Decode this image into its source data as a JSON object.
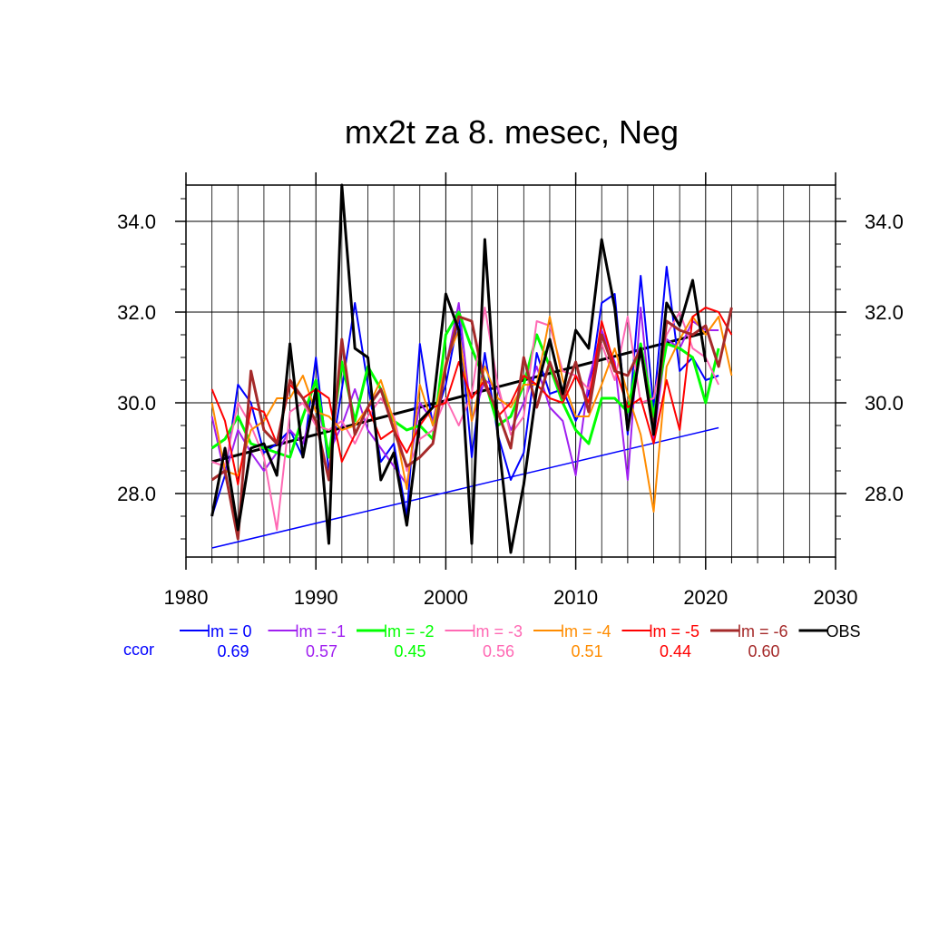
{
  "chart_data": {
    "type": "line",
    "title": "mx2t za 8. mesec, Neg",
    "xlim": [
      1980,
      2030
    ],
    "ylim": [
      26.6,
      34.8
    ],
    "x_ticks": [
      "1980",
      "1990",
      "2000",
      "2010",
      "2020",
      "2030"
    ],
    "y_ticks": [
      "28.0",
      "30.0",
      "32.0",
      "34.0"
    ],
    "grid": true,
    "legend_position": "bottom",
    "ccor_label": "ccor",
    "x": [
      1982,
      1983,
      1984,
      1985,
      1986,
      1987,
      1988,
      1989,
      1990,
      1991,
      1992,
      1993,
      1994,
      1995,
      1996,
      1997,
      1998,
      1999,
      2000,
      2001,
      2002,
      2003,
      2004,
      2005,
      2006,
      2007,
      2008,
      2009,
      2010,
      2011,
      2012,
      2013,
      2014,
      2015,
      2016,
      2017,
      2018,
      2019,
      2020,
      2021,
      2022
    ],
    "series": [
      {
        "name": "lm = 0",
        "ccor": "0.69",
        "color": "#0000ff",
        "width": 2,
        "values": [
          27.5,
          28.4,
          30.4,
          30.0,
          28.9,
          29.1,
          29.4,
          28.8,
          31.0,
          28.5,
          30.3,
          32.2,
          30.4,
          28.7,
          29.1,
          27.5,
          31.3,
          29.5,
          30.4,
          31.9,
          28.8,
          31.1,
          29.3,
          28.3,
          28.9,
          31.1,
          30.2,
          30.3,
          29.6,
          30.2,
          32.2,
          32.4,
          29.3,
          32.8,
          29.9,
          33.0,
          30.7,
          31.0,
          30.5,
          30.6,
          null
        ]
      },
      {
        "name": "lm = -1",
        "ccor": "0.57",
        "color": "#a020f0",
        "width": 2,
        "values": [
          29.7,
          28.4,
          29.4,
          28.9,
          28.5,
          28.9,
          29.4,
          29.1,
          30.1,
          28.9,
          29.5,
          30.3,
          29.4,
          29.0,
          28.6,
          28.2,
          30.0,
          29.6,
          30.8,
          32.2,
          29.6,
          30.5,
          30.3,
          29.4,
          30.0,
          30.8,
          29.9,
          29.6,
          28.4,
          30.5,
          31.6,
          30.9,
          28.3,
          32.1,
          29.2,
          31.4,
          31.2,
          31.8,
          31.6,
          31.6,
          null
        ]
      },
      {
        "name": "lm = -2",
        "ccor": "0.45",
        "color": "#00ff00",
        "width": 3,
        "values": [
          29.0,
          29.2,
          29.7,
          29.1,
          29.0,
          28.9,
          28.8,
          29.7,
          30.5,
          28.8,
          30.9,
          29.6,
          30.8,
          30.3,
          29.6,
          29.4,
          29.5,
          29.2,
          31.5,
          32.0,
          31.2,
          30.5,
          29.5,
          29.7,
          30.4,
          31.5,
          30.8,
          30.0,
          29.4,
          29.1,
          30.1,
          30.1,
          29.8,
          31.3,
          29.7,
          31.3,
          31.2,
          31.0,
          30.0,
          31.2,
          null
        ]
      },
      {
        "name": "lm = -3",
        "ccor": "0.56",
        "color": "#ff69b4",
        "width": 2,
        "values": [
          28.7,
          28.6,
          30.0,
          29.5,
          28.8,
          27.2,
          29.8,
          30.0,
          29.5,
          29.4,
          29.6,
          29.1,
          29.7,
          30.1,
          29.7,
          28.5,
          29.2,
          29.4,
          30.1,
          29.5,
          30.2,
          32.1,
          30.4,
          29.3,
          29.7,
          31.8,
          31.7,
          30.7,
          30.6,
          30.3,
          31.3,
          30.5,
          31.9,
          30.0,
          30.1,
          31.5,
          32.0,
          31.2,
          31.0,
          30.4,
          null
        ]
      },
      {
        "name": "lm = -4",
        "ccor": "0.51",
        "color": "#ff8c00",
        "width": 2,
        "values": [
          30.0,
          28.5,
          28.4,
          29.4,
          29.6,
          30.1,
          30.1,
          30.6,
          29.8,
          29.7,
          29.4,
          29.5,
          29.9,
          30.5,
          29.6,
          28.1,
          30.4,
          29.5,
          30.9,
          31.6,
          29.6,
          30.8,
          30.1,
          29.9,
          30.4,
          30.4,
          31.9,
          30.5,
          29.7,
          29.7,
          30.4,
          31.2,
          30.2,
          29.3,
          27.6,
          30.8,
          31.4,
          31.9,
          31.5,
          31.9,
          30.6
        ]
      },
      {
        "name": "lm = -5",
        "ccor": "0.44",
        "color": "#ff0000",
        "width": 2,
        "values": [
          30.3,
          29.6,
          28.2,
          29.9,
          29.8,
          29.1,
          30.4,
          30.1,
          30.3,
          30.1,
          28.7,
          29.3,
          29.9,
          29.2,
          29.4,
          28.9,
          29.5,
          29.9,
          30.0,
          30.9,
          30.1,
          30.5,
          29.7,
          30.0,
          30.6,
          30.4,
          30.1,
          30.0,
          30.6,
          30.0,
          31.8,
          30.8,
          29.9,
          30.1,
          29.1,
          30.5,
          29.4,
          31.9,
          32.1,
          32.0,
          31.5
        ]
      },
      {
        "name": "lm = -6",
        "ccor": "0.60",
        "color": "#a52a2a",
        "width": 3,
        "values": [
          28.3,
          28.5,
          27.0,
          30.7,
          29.4,
          29.1,
          30.5,
          30.1,
          29.6,
          28.3,
          31.4,
          29.3,
          29.9,
          30.3,
          29.4,
          28.6,
          28.8,
          29.1,
          30.8,
          31.9,
          31.8,
          30.4,
          29.8,
          29.0,
          31.0,
          29.9,
          30.9,
          30.1,
          30.9,
          29.8,
          31.5,
          30.7,
          30.6,
          31.2,
          29.4,
          31.8,
          31.6,
          31.5,
          31.7,
          30.8,
          32.1
        ]
      },
      {
        "name": "OBS",
        "ccor": "",
        "color": "#000000",
        "width": 3,
        "values": [
          27.5,
          29.0,
          27.2,
          29.0,
          29.1,
          28.4,
          31.3,
          28.8,
          30.3,
          26.9,
          34.8,
          31.2,
          31.0,
          28.3,
          28.9,
          27.3,
          29.6,
          29.9,
          32.4,
          31.6,
          26.9,
          33.6,
          29.3,
          26.7,
          28.2,
          30.3,
          31.4,
          30.2,
          31.6,
          31.2,
          33.6,
          32.1,
          29.4,
          31.2,
          29.3,
          32.2,
          31.7,
          32.7,
          30.9,
          null,
          null
        ]
      }
    ],
    "trend_lines": [
      {
        "color": "#000000",
        "width": 3,
        "x": [
          1982,
          2020
        ],
        "y": [
          28.7,
          31.55
        ]
      },
      {
        "color": "#0000ff",
        "width": 1.5,
        "x": [
          1982,
          2021
        ],
        "y": [
          26.8,
          29.45
        ]
      }
    ]
  }
}
